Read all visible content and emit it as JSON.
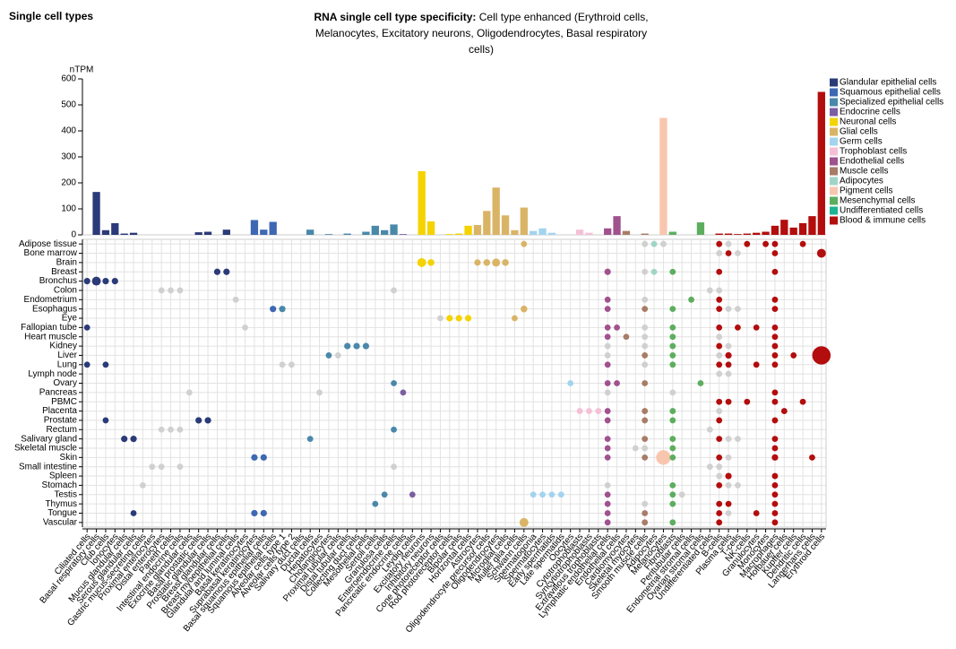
{
  "chart_data": {
    "type": "bar",
    "heading": "Single cell types",
    "title": "RNA single cell type specificity:",
    "subtitle": "Cell type enhanced (Erythroid cells, Melanocytes, Excitatory neurons, Oligodendrocytes, Basal respiratory cells)",
    "y_label": "nTPM",
    "ylim": [
      0,
      600
    ],
    "yticks": [
      0,
      100,
      200,
      300,
      400,
      500,
      600
    ],
    "legend": [
      {
        "name": "Glandular epithelial cells",
        "color": "#2b3a78"
      },
      {
        "name": "Squamous epithelial cells",
        "color": "#3e68b3"
      },
      {
        "name": "Specialized epithelial cells",
        "color": "#4a88aa"
      },
      {
        "name": "Endocrine cells",
        "color": "#7c5ea2"
      },
      {
        "name": "Neuronal cells",
        "color": "#f4d300"
      },
      {
        "name": "Glial cells",
        "color": "#dab466"
      },
      {
        "name": "Germ cells",
        "color": "#a2d4ef"
      },
      {
        "name": "Trophoblast cells",
        "color": "#f5c0d6"
      },
      {
        "name": "Endothelial cells",
        "color": "#a0528e"
      },
      {
        "name": "Muscle cells",
        "color": "#a87c66"
      },
      {
        "name": "Adipocytes",
        "color": "#a0d5c6"
      },
      {
        "name": "Pigment cells",
        "color": "#f8c6ae"
      },
      {
        "name": "Mesenchymal cells",
        "color": "#5cae5e"
      },
      {
        "name": "Undifferentiated cells",
        "color": "#1cb394"
      },
      {
        "name": "Blood & immune cells",
        "color": "#b30d0d"
      }
    ],
    "categories": [
      "Ciliated cells",
      "Basal respiratory cells",
      "Club cells",
      "Ionocytes",
      "Mucus glandular cells",
      "Serous glandular cells",
      "Gastric mucus-secreting cells",
      "Proximal enterocytes",
      "Distal enterocytes",
      "Paneth cells",
      "Intestinal endocrine cells",
      "Exocrine glandular cells",
      "Basal prostatic cells",
      "Prostatic glandular cells",
      "Breast glandular cells",
      "Breast myoepithelial cells",
      "Glandular and luminal cells",
      "Basal keratinocytes",
      "Suprabasal keratinocytes",
      "Basal squamous epithelial cells",
      "Squamous epithelial cells",
      "Alveolar cells type 1",
      "Alveolar cells type 2",
      "Salivary duct cells",
      "Ductal cells",
      "Hepatocytes",
      "Cholangiocytes",
      "Proximal tubular cells",
      "Distal tubular cells",
      "Collecting duct cells",
      "Mesothelial cells",
      "Sertoli cells",
      "Granulosa cells",
      "Enteroendocrine cells",
      "Pancreatic endocrine cells",
      "Leydig cells",
      "Excitatory neurons",
      "Inhibitory neurons",
      "Cone photoreceptor cells",
      "Rod photoreceptor cells",
      "Bipolar cells",
      "Horizontal cells",
      "Astrocytes",
      "Oligodendrocyte precursor cells",
      "Oligodendrocytes",
      "Microglial cells",
      "Muller glia cells",
      "Schwann cells",
      "Spermatogonia",
      "Spermatocytes",
      "Early spermatids",
      "Late spermatids",
      "Oocytes",
      "Cytotrophoblasts",
      "Syncytiotrophoblasts",
      "Extravillous trophoblasts",
      "Lymphatic endothelial cells",
      "Endothelial cells",
      "Cardiomyocytes",
      "Skeletal myocytes",
      "Smooth muscle cells",
      "Adipocytes",
      "Melanocytes",
      "Fibroblasts",
      "Peritubular cells",
      "Endometrial stromal cells",
      "Ovarian stromal cells",
      "Undifferentiated cells",
      "B-cells",
      "Plasma cells",
      "T-cells",
      "NK-cells",
      "Granulocytes",
      "Monocytes",
      "Macrophages",
      "Hofbauer cells",
      "Kupffer cells",
      "Dendritic cells",
      "Langerhans cells",
      "Erythroid cells"
    ],
    "groups": [
      0,
      0,
      0,
      0,
      0,
      0,
      0,
      0,
      0,
      0,
      3,
      0,
      0,
      0,
      0,
      0,
      0,
      1,
      1,
      1,
      1,
      2,
      2,
      2,
      2,
      2,
      2,
      2,
      2,
      2,
      2,
      2,
      2,
      2,
      3,
      3,
      4,
      4,
      4,
      4,
      4,
      4,
      5,
      5,
      5,
      5,
      5,
      5,
      6,
      6,
      6,
      6,
      6,
      7,
      7,
      7,
      8,
      8,
      9,
      9,
      9,
      10,
      11,
      12,
      12,
      12,
      12,
      13,
      14,
      14,
      14,
      14,
      14,
      14,
      14,
      14,
      14,
      14,
      14,
      14
    ],
    "values": [
      0,
      165,
      18,
      45,
      5,
      8,
      0,
      0,
      0,
      0,
      0,
      0,
      10,
      12,
      0,
      20,
      0,
      0,
      57,
      20,
      50,
      0,
      0,
      0,
      20,
      0,
      3,
      0,
      5,
      0,
      12,
      35,
      18,
      40,
      3,
      0,
      245,
      52,
      0,
      3,
      5,
      35,
      38,
      92,
      182,
      75,
      18,
      105,
      15,
      25,
      8,
      0,
      0,
      20,
      8,
      0,
      25,
      72,
      15,
      0,
      5,
      0,
      450,
      12,
      0,
      0,
      48,
      0,
      5,
      5,
      3,
      5,
      8,
      12,
      35,
      58,
      28,
      45,
      72,
      550
    ],
    "rows": [
      "Adipose tissue",
      "Bone marrow",
      "Brain",
      "Breast",
      "Bronchus",
      "Colon",
      "Endometrium",
      "Esophagus",
      "Eye",
      "Fallopian tube",
      "Heart muscle",
      "Kidney",
      "Liver",
      "Lung",
      "Lymph node",
      "Ovary",
      "Pancreas",
      "PBMC",
      "Placenta",
      "Prostate",
      "Rectum",
      "Salivary gland",
      "Skeletal muscle",
      "Skin",
      "Small intestine",
      "Spleen",
      "Stomach",
      "Testis",
      "Thymus",
      "Tongue",
      "Vascular"
    ],
    "dots": [
      [
        0,
        47,
        20,
        1
      ],
      [
        0,
        60,
        20,
        0
      ],
      [
        0,
        61,
        20,
        1
      ],
      [
        0,
        62,
        20,
        0
      ],
      [
        0,
        68,
        20,
        1
      ],
      [
        0,
        69,
        20,
        0
      ],
      [
        0,
        71,
        20,
        1
      ],
      [
        0,
        73,
        20,
        1
      ],
      [
        0,
        74,
        20,
        1
      ],
      [
        0,
        77,
        20,
        1
      ],
      [
        1,
        68,
        20,
        0
      ],
      [
        1,
        69,
        20,
        1
      ],
      [
        1,
        70,
        20,
        0
      ],
      [
        1,
        74,
        20,
        1
      ],
      [
        1,
        79,
        150,
        1
      ],
      [
        2,
        36,
        150,
        1
      ],
      [
        2,
        37,
        40,
        1
      ],
      [
        2,
        42,
        30,
        1
      ],
      [
        2,
        43,
        40,
        1
      ],
      [
        2,
        44,
        100,
        1
      ],
      [
        2,
        45,
        40,
        1
      ],
      [
        3,
        14,
        30,
        1
      ],
      [
        3,
        15,
        30,
        1
      ],
      [
        3,
        56,
        30,
        1
      ],
      [
        3,
        60,
        20,
        0
      ],
      [
        3,
        61,
        20,
        1
      ],
      [
        3,
        63,
        20,
        1
      ],
      [
        3,
        68,
        20,
        1
      ],
      [
        3,
        74,
        20,
        1
      ],
      [
        4,
        0,
        30,
        1
      ],
      [
        4,
        1,
        150,
        1
      ],
      [
        4,
        2,
        30,
        1
      ],
      [
        4,
        3,
        30,
        1
      ],
      [
        5,
        8,
        20,
        0
      ],
      [
        5,
        9,
        20,
        0
      ],
      [
        5,
        10,
        20,
        0
      ],
      [
        5,
        33,
        20,
        0
      ],
      [
        5,
        67,
        20,
        0
      ],
      [
        5,
        68,
        20,
        0
      ],
      [
        6,
        16,
        20,
        0
      ],
      [
        6,
        56,
        20,
        1
      ],
      [
        6,
        60,
        20,
        0
      ],
      [
        6,
        65,
        20,
        1
      ],
      [
        6,
        68,
        20,
        1
      ],
      [
        6,
        74,
        20,
        1
      ],
      [
        7,
        20,
        30,
        1
      ],
      [
        7,
        21,
        30,
        1
      ],
      [
        7,
        47,
        40,
        1
      ],
      [
        7,
        56,
        20,
        1
      ],
      [
        7,
        60,
        20,
        1
      ],
      [
        7,
        63,
        20,
        1
      ],
      [
        7,
        68,
        20,
        1
      ],
      [
        7,
        69,
        20,
        0
      ],
      [
        7,
        70,
        20,
        0
      ],
      [
        7,
        74,
        20,
        1
      ],
      [
        8,
        38,
        20,
        0
      ],
      [
        8,
        39,
        30,
        1
      ],
      [
        8,
        40,
        30,
        1
      ],
      [
        8,
        41,
        30,
        1
      ],
      [
        8,
        46,
        20,
        1
      ],
      [
        9,
        0,
        20,
        1
      ],
      [
        9,
        17,
        20,
        0
      ],
      [
        9,
        56,
        20,
        1
      ],
      [
        9,
        57,
        20,
        1
      ],
      [
        9,
        60,
        20,
        0
      ],
      [
        9,
        63,
        20,
        1
      ],
      [
        9,
        68,
        20,
        1
      ],
      [
        9,
        70,
        20,
        1
      ],
      [
        9,
        72,
        20,
        1
      ],
      [
        9,
        74,
        20,
        1
      ],
      [
        10,
        56,
        20,
        1
      ],
      [
        10,
        58,
        20,
        1
      ],
      [
        10,
        60,
        20,
        0
      ],
      [
        10,
        63,
        20,
        1
      ],
      [
        10,
        68,
        20,
        0
      ],
      [
        10,
        74,
        20,
        1
      ],
      [
        11,
        28,
        30,
        1
      ],
      [
        11,
        29,
        30,
        1
      ],
      [
        11,
        30,
        30,
        1
      ],
      [
        11,
        56,
        20,
        0
      ],
      [
        11,
        60,
        20,
        0
      ],
      [
        11,
        63,
        20,
        1
      ],
      [
        11,
        68,
        20,
        1
      ],
      [
        11,
        69,
        20,
        0
      ],
      [
        11,
        74,
        20,
        1
      ],
      [
        12,
        26,
        20,
        1
      ],
      [
        12,
        27,
        20,
        0
      ],
      [
        12,
        56,
        20,
        0
      ],
      [
        12,
        60,
        20,
        1
      ],
      [
        12,
        63,
        20,
        1
      ],
      [
        12,
        68,
        20,
        0
      ],
      [
        12,
        69,
        30,
        1
      ],
      [
        12,
        74,
        20,
        1
      ],
      [
        12,
        76,
        20,
        1
      ],
      [
        12,
        79,
        1500,
        1
      ],
      [
        13,
        0,
        20,
        1
      ],
      [
        13,
        2,
        20,
        1
      ],
      [
        13,
        21,
        20,
        0
      ],
      [
        13,
        22,
        20,
        0
      ],
      [
        13,
        56,
        20,
        1
      ],
      [
        13,
        60,
        20,
        0
      ],
      [
        13,
        63,
        20,
        1
      ],
      [
        13,
        68,
        20,
        1
      ],
      [
        13,
        69,
        20,
        1
      ],
      [
        13,
        72,
        20,
        1
      ],
      [
        13,
        74,
        20,
        1
      ],
      [
        14,
        68,
        20,
        0
      ],
      [
        14,
        69,
        20,
        0
      ],
      [
        15,
        33,
        20,
        1
      ],
      [
        15,
        52,
        20,
        1
      ],
      [
        15,
        56,
        20,
        1
      ],
      [
        15,
        57,
        20,
        1
      ],
      [
        15,
        60,
        20,
        1
      ],
      [
        15,
        66,
        20,
        1
      ],
      [
        16,
        11,
        20,
        0
      ],
      [
        16,
        25,
        20,
        0
      ],
      [
        16,
        34,
        20,
        1
      ],
      [
        16,
        56,
        20,
        0
      ],
      [
        16,
        63,
        20,
        0
      ],
      [
        16,
        74,
        20,
        1
      ],
      [
        17,
        68,
        20,
        1
      ],
      [
        17,
        69,
        20,
        1
      ],
      [
        17,
        71,
        20,
        1
      ],
      [
        17,
        74,
        20,
        1
      ],
      [
        17,
        77,
        20,
        1
      ],
      [
        18,
        53,
        20,
        1
      ],
      [
        18,
        54,
        20,
        1
      ],
      [
        18,
        55,
        20,
        1
      ],
      [
        18,
        56,
        20,
        1
      ],
      [
        18,
        60,
        20,
        1
      ],
      [
        18,
        63,
        20,
        1
      ],
      [
        18,
        68,
        20,
        0
      ],
      [
        18,
        75,
        20,
        1
      ],
      [
        19,
        2,
        20,
        1
      ],
      [
        19,
        12,
        30,
        1
      ],
      [
        19,
        13,
        30,
        1
      ],
      [
        19,
        56,
        20,
        1
      ],
      [
        19,
        60,
        20,
        1
      ],
      [
        19,
        63,
        20,
        1
      ],
      [
        19,
        68,
        20,
        1
      ],
      [
        19,
        74,
        20,
        1
      ],
      [
        20,
        8,
        20,
        0
      ],
      [
        20,
        9,
        20,
        0
      ],
      [
        20,
        10,
        20,
        0
      ],
      [
        20,
        33,
        20,
        1
      ],
      [
        20,
        67,
        20,
        0
      ],
      [
        21,
        4,
        30,
        1
      ],
      [
        21,
        5,
        30,
        1
      ],
      [
        21,
        24,
        20,
        1
      ],
      [
        21,
        56,
        20,
        1
      ],
      [
        21,
        60,
        20,
        1
      ],
      [
        21,
        63,
        20,
        1
      ],
      [
        21,
        68,
        20,
        1
      ],
      [
        21,
        69,
        20,
        0
      ],
      [
        21,
        70,
        20,
        0
      ],
      [
        21,
        74,
        20,
        1
      ],
      [
        22,
        56,
        20,
        1
      ],
      [
        22,
        59,
        20,
        0
      ],
      [
        22,
        60,
        20,
        0
      ],
      [
        22,
        63,
        20,
        1
      ],
      [
        22,
        74,
        20,
        1
      ],
      [
        23,
        18,
        30,
        1
      ],
      [
        23,
        19,
        30,
        1
      ],
      [
        23,
        56,
        20,
        1
      ],
      [
        23,
        60,
        20,
        1
      ],
      [
        23,
        62,
        800,
        1
      ],
      [
        23,
        63,
        20,
        1
      ],
      [
        23,
        68,
        20,
        1
      ],
      [
        23,
        69,
        20,
        0
      ],
      [
        23,
        74,
        30,
        1
      ],
      [
        23,
        78,
        20,
        1
      ],
      [
        24,
        7,
        20,
        0
      ],
      [
        24,
        8,
        20,
        0
      ],
      [
        24,
        10,
        20,
        0
      ],
      [
        24,
        33,
        20,
        0
      ],
      [
        24,
        67,
        20,
        0
      ],
      [
        24,
        68,
        20,
        0
      ],
      [
        25,
        68,
        20,
        0
      ],
      [
        25,
        69,
        30,
        1
      ],
      [
        25,
        74,
        20,
        1
      ],
      [
        26,
        6,
        20,
        0
      ],
      [
        26,
        56,
        20,
        0
      ],
      [
        26,
        63,
        20,
        1
      ],
      [
        26,
        68,
        20,
        1
      ],
      [
        26,
        69,
        20,
        0
      ],
      [
        26,
        70,
        20,
        0
      ],
      [
        26,
        74,
        20,
        1
      ],
      [
        27,
        32,
        20,
        1
      ],
      [
        27,
        35,
        20,
        1
      ],
      [
        27,
        48,
        20,
        1
      ],
      [
        27,
        49,
        20,
        1
      ],
      [
        27,
        50,
        20,
        1
      ],
      [
        27,
        51,
        20,
        1
      ],
      [
        27,
        56,
        20,
        1
      ],
      [
        27,
        63,
        20,
        1
      ],
      [
        27,
        64,
        20,
        0
      ],
      [
        27,
        74,
        20,
        1
      ],
      [
        28,
        31,
        20,
        1
      ],
      [
        28,
        56,
        20,
        1
      ],
      [
        28,
        60,
        20,
        0
      ],
      [
        28,
        63,
        20,
        1
      ],
      [
        28,
        68,
        20,
        1
      ],
      [
        28,
        69,
        20,
        1
      ],
      [
        28,
        74,
        20,
        1
      ],
      [
        29,
        5,
        20,
        1
      ],
      [
        29,
        18,
        30,
        1
      ],
      [
        29,
        19,
        30,
        1
      ],
      [
        29,
        56,
        20,
        1
      ],
      [
        29,
        60,
        20,
        1
      ],
      [
        29,
        68,
        20,
        1
      ],
      [
        29,
        69,
        20,
        0
      ],
      [
        29,
        72,
        20,
        1
      ],
      [
        29,
        74,
        20,
        1
      ],
      [
        30,
        47,
        150,
        1
      ],
      [
        30,
        56,
        20,
        1
      ],
      [
        30,
        60,
        20,
        1
      ],
      [
        30,
        63,
        20,
        1
      ],
      [
        30,
        68,
        20,
        1
      ],
      [
        30,
        74,
        20,
        1
      ]
    ]
  }
}
